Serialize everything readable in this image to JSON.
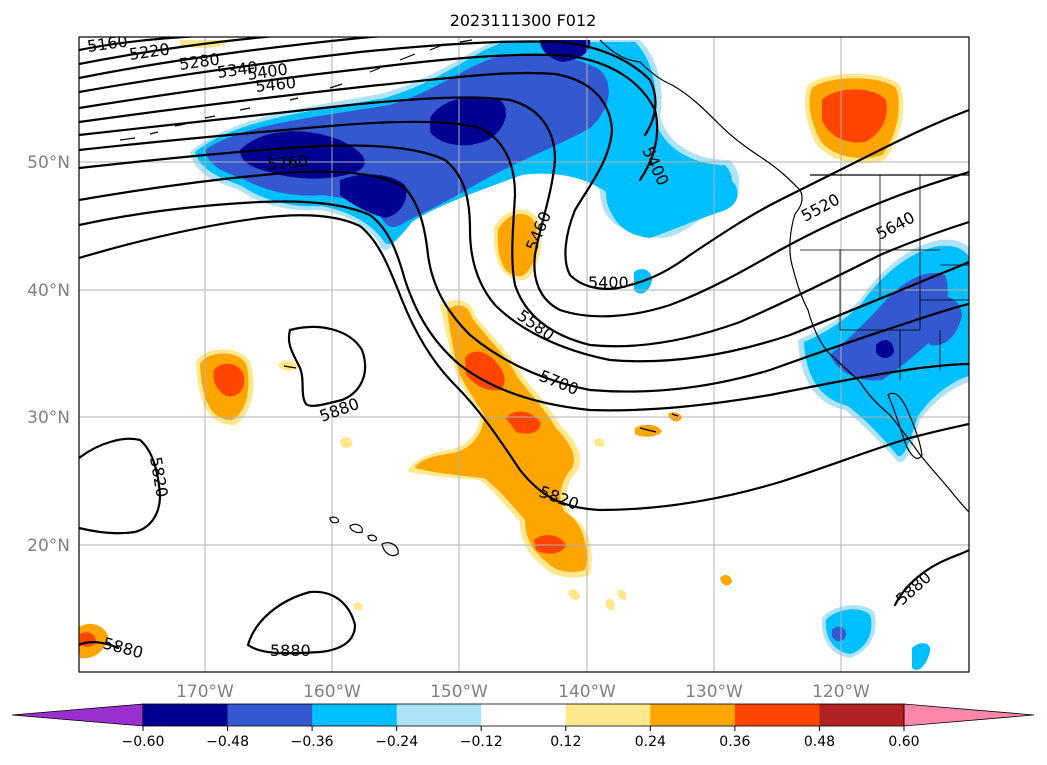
{
  "title": "2023111300 F012",
  "latitude_labels": [
    "50°N",
    "40°N",
    "30°N",
    "20°N"
  ],
  "longitude_labels": [
    "170°W",
    "160°W",
    "150°W",
    "140°W",
    "130°W",
    "120°W"
  ],
  "contour_labels": [
    "5160",
    "5220",
    "5280",
    "5340",
    "5400",
    "5460",
    "5760",
    "5400",
    "5460",
    "5520",
    "5640",
    "5400",
    "5580",
    "5700",
    "5880",
    "5820",
    "5820",
    "5880",
    "5880",
    "5880"
  ],
  "colorbar": {
    "tick_labels": [
      "−0.60",
      "−0.48",
      "−0.36",
      "−0.24",
      "−0.12",
      "0.12",
      "0.24",
      "0.36",
      "0.48",
      "0.60"
    ],
    "colors": [
      "#9b30d0",
      "#000091",
      "#3358d0",
      "#00bfff",
      "#aee3f7",
      "#ffffff",
      "#ffe78c",
      "#ffa500",
      "#ff4500",
      "#b22222",
      "#ff88aa"
    ]
  },
  "colors": {
    "contour": "#000000",
    "grid": "#b0b0b0",
    "axis_tick_label": "#808080"
  }
}
